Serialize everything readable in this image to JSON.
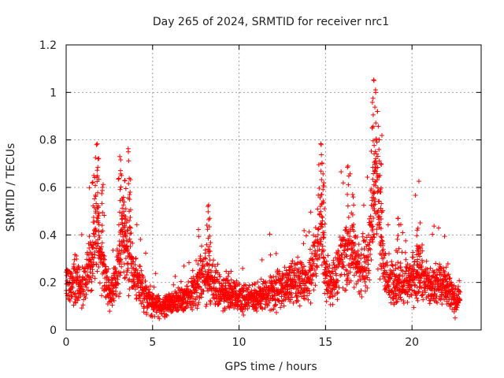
{
  "chart_data": {
    "type": "scatter",
    "title": "Day 265 of 2024, SRMTID for receiver nrc1",
    "xlabel": "GPS time / hours",
    "ylabel": "SRMTID / TECUs",
    "xlim": [
      0,
      24
    ],
    "ylim": [
      0,
      1.2
    ],
    "xticks": [
      0,
      5,
      10,
      15,
      20
    ],
    "xtick_labels": [
      "0",
      "5",
      "10",
      "15",
      "20"
    ],
    "yticks": [
      0,
      0.2,
      0.4,
      0.6,
      0.8,
      1.0,
      1.2
    ],
    "ytick_labels": [
      "0",
      "0.2",
      "0.4",
      "0.6",
      "0.8",
      "1",
      "1.2"
    ],
    "grid": true,
    "marker": "+",
    "color": "#ff0000",
    "series": [
      {
        "name": "SRMTID",
        "profile": [
          [
            0.0,
            0.2
          ],
          [
            0.5,
            0.22
          ],
          [
            1.0,
            0.2
          ],
          [
            1.5,
            0.28
          ],
          [
            1.8,
            0.45
          ],
          [
            2.0,
            0.3
          ],
          [
            2.5,
            0.14
          ],
          [
            3.0,
            0.25
          ],
          [
            3.3,
            0.42
          ],
          [
            3.6,
            0.32
          ],
          [
            4.0,
            0.22
          ],
          [
            4.5,
            0.16
          ],
          [
            5.0,
            0.11
          ],
          [
            5.5,
            0.09
          ],
          [
            6.0,
            0.11
          ],
          [
            7.0,
            0.14
          ],
          [
            7.5,
            0.18
          ],
          [
            8.0,
            0.24
          ],
          [
            8.5,
            0.2
          ],
          [
            9.0,
            0.15
          ],
          [
            10.0,
            0.14
          ],
          [
            11.0,
            0.13
          ],
          [
            12.0,
            0.16
          ],
          [
            13.0,
            0.2
          ],
          [
            14.0,
            0.21
          ],
          [
            14.5,
            0.35
          ],
          [
            14.7,
            0.45
          ],
          [
            15.0,
            0.2
          ],
          [
            15.5,
            0.2
          ],
          [
            16.0,
            0.3
          ],
          [
            16.5,
            0.35
          ],
          [
            17.0,
            0.24
          ],
          [
            17.5,
            0.3
          ],
          [
            17.9,
            0.6
          ],
          [
            18.2,
            0.42
          ],
          [
            18.5,
            0.22
          ],
          [
            19.0,
            0.18
          ],
          [
            19.5,
            0.2
          ],
          [
            20.0,
            0.22
          ],
          [
            20.5,
            0.25
          ],
          [
            21.0,
            0.18
          ],
          [
            21.5,
            0.2
          ],
          [
            22.0,
            0.18
          ],
          [
            22.5,
            0.12
          ],
          [
            22.8,
            0.14
          ]
        ],
        "spikes": [
          {
            "x": 1.6,
            "y": 0.65
          },
          {
            "x": 1.75,
            "y": 0.78
          },
          {
            "x": 1.85,
            "y": 0.72
          },
          {
            "x": 2.1,
            "y": 0.6
          },
          {
            "x": 3.1,
            "y": 0.73
          },
          {
            "x": 3.2,
            "y": 0.65
          },
          {
            "x": 3.4,
            "y": 0.63
          },
          {
            "x": 3.6,
            "y": 0.75
          },
          {
            "x": 3.7,
            "y": 0.58
          },
          {
            "x": 8.2,
            "y": 0.52
          },
          {
            "x": 8.3,
            "y": 0.47
          },
          {
            "x": 14.75,
            "y": 0.78
          },
          {
            "x": 14.8,
            "y": 0.7
          },
          {
            "x": 14.9,
            "y": 0.62
          },
          {
            "x": 16.3,
            "y": 0.69
          },
          {
            "x": 16.6,
            "y": 0.56
          },
          {
            "x": 17.7,
            "y": 0.85
          },
          {
            "x": 17.8,
            "y": 1.05
          },
          {
            "x": 17.9,
            "y": 1.0
          },
          {
            "x": 18.0,
            "y": 0.92
          },
          {
            "x": 18.1,
            "y": 0.8
          },
          {
            "x": 18.2,
            "y": 0.7
          },
          {
            "x": 19.2,
            "y": 0.47
          },
          {
            "x": 20.3,
            "y": 0.42
          }
        ]
      }
    ]
  }
}
